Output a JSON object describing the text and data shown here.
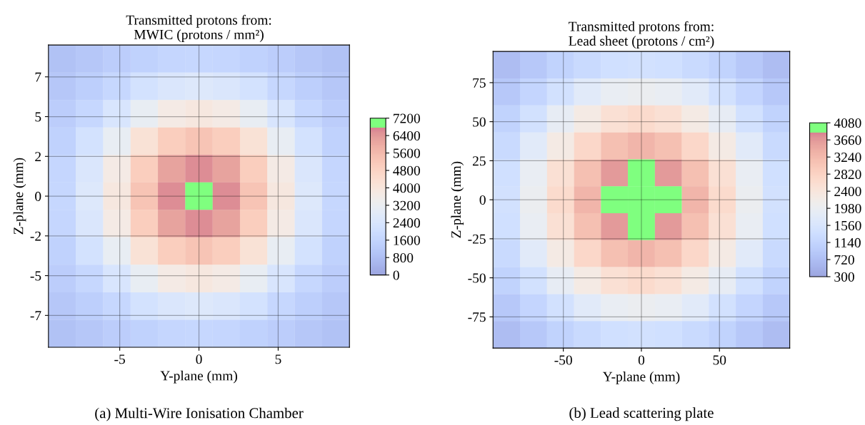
{
  "chart_data": [
    {
      "type": "heatmap",
      "title": "Transmitted protons from:\nMWIC (protons / mm²)",
      "xlabel": "Y-plane (mm)",
      "ylabel": "Z-plane (mm)",
      "annotations": [
        "(a) Multi-Wire Ionisation Chamber"
      ],
      "x": [
        -8.64,
        -6.91,
        -5.18,
        -3.45,
        -1.73,
        0,
        1.73,
        3.45,
        5.18,
        6.91,
        8.64
      ],
      "y": [
        8.64,
        6.91,
        5.18,
        3.45,
        1.73,
        0,
        -1.73,
        -3.45,
        -5.18,
        -6.91,
        -8.64
      ],
      "xlim": [
        -9.5,
        9.5
      ],
      "ylim": [
        -9.5,
        9.5
      ],
      "xticks": [
        -5,
        0,
        5
      ],
      "yticks": [
        {
          "value": -7.5,
          "label": "-7"
        },
        {
          "value": -5,
          "label": "-5"
        },
        {
          "value": -2.5,
          "label": "-2"
        },
        0,
        {
          "value": 2.5,
          "label": "2"
        },
        5,
        {
          "value": 7.5,
          "label": "7"
        }
      ],
      "grid": true,
      "clim": [
        0,
        7200
      ],
      "cticks": [
        0,
        800,
        1600,
        2400,
        3200,
        4000,
        4800,
        5600,
        6400,
        7200
      ],
      "cells": [
        [
          900,
          1100,
          1300,
          1500,
          1650,
          1700,
          1650,
          1500,
          1300,
          1100,
          900
        ],
        [
          1100,
          1350,
          1700,
          2200,
          2500,
          2600,
          2500,
          2200,
          1700,
          1350,
          1100
        ],
        [
          1300,
          1700,
          2400,
          3100,
          3700,
          3900,
          3700,
          3100,
          2400,
          1700,
          1300
        ],
        [
          1500,
          2200,
          3100,
          4200,
          5000,
          5300,
          5000,
          4200,
          3100,
          2200,
          1500
        ],
        [
          1650,
          2500,
          3700,
          5000,
          6200,
          6600,
          6200,
          5000,
          3700,
          2500,
          1650
        ],
        [
          1700,
          2600,
          3900,
          5300,
          6600,
          7000,
          6600,
          5300,
          3900,
          2600,
          1700
        ],
        [
          1650,
          2500,
          3700,
          5000,
          6200,
          6600,
          6200,
          5000,
          3700,
          2500,
          1650
        ],
        [
          1500,
          2200,
          3100,
          4200,
          5000,
          5300,
          5000,
          4200,
          3100,
          2200,
          1500
        ],
        [
          1300,
          1700,
          2400,
          3100,
          3700,
          3900,
          3700,
          3100,
          2400,
          1700,
          1300
        ],
        [
          1100,
          1350,
          1700,
          2200,
          2500,
          2600,
          2500,
          2200,
          1700,
          1350,
          1100
        ],
        [
          900,
          1100,
          1300,
          1500,
          1650,
          1700,
          1650,
          1500,
          1300,
          1100,
          900
        ]
      ]
    },
    {
      "type": "heatmap",
      "title": "Transmitted protons from:\nLead sheet (protons / cm²)",
      "xlabel": "Y-plane (mm)",
      "ylabel": "Z-plane (mm)",
      "annotations": [
        "(b) Lead scattering plate"
      ],
      "x": [
        -86.4,
        -69.1,
        -51.8,
        -34.5,
        -17.3,
        0,
        17.3,
        34.5,
        51.8,
        69.1,
        86.4
      ],
      "y": [
        86.4,
        69.1,
        51.8,
        34.5,
        17.3,
        0,
        -17.3,
        -34.5,
        -51.8,
        -69.1,
        -86.4
      ],
      "xlim": [
        -95,
        95
      ],
      "ylim": [
        -95,
        95
      ],
      "xticks": [
        -50,
        0,
        50
      ],
      "yticks": [
        -75,
        -50,
        -25,
        0,
        25,
        50,
        75
      ],
      "grid": true,
      "clim": [
        300,
        4080
      ],
      "cticks": [
        300,
        720,
        1140,
        1560,
        1980,
        2400,
        2820,
        3240,
        3660,
        4080
      ],
      "cells": [
        [
          700,
          900,
          1100,
          1250,
          1400,
          1450,
          1400,
          1250,
          1100,
          900,
          700
        ],
        [
          900,
          1150,
          1450,
          1750,
          1950,
          2000,
          1950,
          1750,
          1450,
          1150,
          900
        ],
        [
          1100,
          1450,
          1900,
          2250,
          2550,
          2650,
          2550,
          2250,
          1900,
          1450,
          1100
        ],
        [
          1250,
          1750,
          2250,
          2750,
          3150,
          3300,
          3150,
          2750,
          2250,
          1750,
          1250
        ],
        [
          1400,
          1950,
          2550,
          3150,
          3650,
          3870,
          3650,
          3150,
          2550,
          1950,
          1400
        ],
        [
          1450,
          2000,
          2650,
          3300,
          3870,
          3950,
          3870,
          3300,
          2650,
          2000,
          1450
        ],
        [
          1400,
          1950,
          2550,
          3150,
          3650,
          3870,
          3650,
          3150,
          2550,
          1950,
          1400
        ],
        [
          1250,
          1750,
          2250,
          2750,
          3150,
          3300,
          3150,
          2750,
          2250,
          1750,
          1250
        ],
        [
          1100,
          1450,
          1900,
          2250,
          2550,
          2650,
          2550,
          2250,
          1900,
          1450,
          1100
        ],
        [
          900,
          1150,
          1450,
          1750,
          1950,
          2000,
          1950,
          1750,
          1450,
          1150,
          900
        ],
        [
          700,
          900,
          1100,
          1250,
          1400,
          1450,
          1400,
          1250,
          1100,
          900,
          700
        ]
      ]
    }
  ]
}
